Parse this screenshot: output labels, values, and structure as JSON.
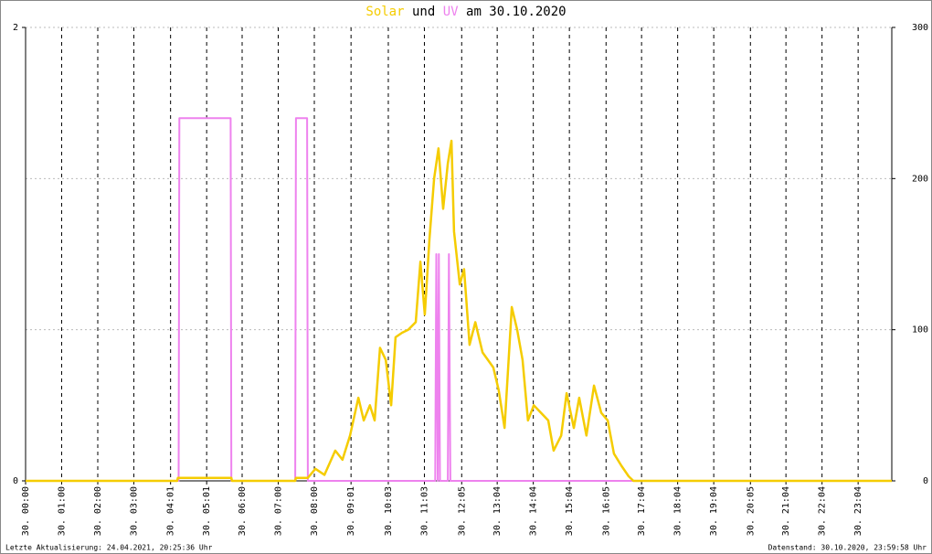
{
  "chart_data": {
    "type": "line",
    "title_parts": [
      "Solar",
      "und",
      "UV",
      "am 30.10.2020"
    ],
    "x": [],
    "series": [
      {
        "name": "Solar",
        "color": "#f5cc00",
        "axis": "y2",
        "x": [
          0,
          4.2,
          4.22,
          5.7,
          5.72,
          7.47,
          7.49,
          7.82,
          8.03,
          8.28,
          8.58,
          8.78,
          8.99,
          9.22,
          9.37,
          9.54,
          9.67,
          9.82,
          9.98,
          10.13,
          10.25,
          10.43,
          10.6,
          10.81,
          10.94,
          11.06,
          11.19,
          11.32,
          11.44,
          11.57,
          11.7,
          11.8,
          11.87,
          12.03,
          12.15,
          12.3,
          12.46,
          12.66,
          12.96,
          13.11,
          13.27,
          13.47,
          13.62,
          13.77,
          13.92,
          14.08,
          14.28,
          14.48,
          14.63,
          14.84,
          14.99,
          15.19,
          15.34,
          15.54,
          15.75,
          15.95,
          16.13,
          16.3,
          16.51,
          16.71,
          16.84,
          24
        ],
        "values": [
          0,
          0,
          2,
          2,
          0,
          0,
          2,
          2,
          8,
          4,
          20,
          14,
          30,
          55,
          40,
          50,
          40,
          88,
          80,
          50,
          95,
          98,
          100,
          105,
          145,
          110,
          160,
          200,
          220,
          180,
          210,
          225,
          165,
          130,
          140,
          90,
          105,
          85,
          75,
          60,
          35,
          115,
          100,
          80,
          40,
          50,
          45,
          40,
          20,
          30,
          58,
          35,
          55,
          30,
          63,
          45,
          40,
          18,
          10,
          3,
          0,
          0
        ]
      },
      {
        "name": "UV",
        "color": "#ee82ee",
        "axis": "y",
        "x": [
          0,
          4.24,
          4.26,
          5.68,
          5.7,
          7.47,
          7.49,
          7.8,
          7.82,
          11.35,
          11.38,
          11.42,
          11.45,
          11.48,
          11.7,
          11.73,
          11.77,
          24
        ],
        "values": [
          0,
          0,
          1.6,
          1.6,
          0,
          0,
          1.6,
          1.6,
          0,
          0,
          1.0,
          0,
          1.0,
          0,
          0,
          1.0,
          0,
          0
        ]
      }
    ],
    "xlim": [
      0,
      24
    ],
    "xticks": [
      {
        "value": 0,
        "label": "30. 00:00"
      },
      {
        "value": 1,
        "label": "30. 01:00"
      },
      {
        "value": 2,
        "label": "30. 02:00"
      },
      {
        "value": 3,
        "label": "30. 03:00"
      },
      {
        "value": 4.017,
        "label": "30. 04:01"
      },
      {
        "value": 5.017,
        "label": "30. 05:01"
      },
      {
        "value": 6,
        "label": "30. 06:00"
      },
      {
        "value": 7,
        "label": "30. 07:00"
      },
      {
        "value": 8,
        "label": "30. 08:00"
      },
      {
        "value": 9.017,
        "label": "30. 09:01"
      },
      {
        "value": 10.05,
        "label": "30. 10:03"
      },
      {
        "value": 11.05,
        "label": "30. 11:03"
      },
      {
        "value": 12.083,
        "label": "30. 12:05"
      },
      {
        "value": 13.067,
        "label": "30. 13:04"
      },
      {
        "value": 14.067,
        "label": "30. 14:04"
      },
      {
        "value": 15.067,
        "label": "30. 15:04"
      },
      {
        "value": 16.083,
        "label": "30. 16:05"
      },
      {
        "value": 17.067,
        "label": "30. 17:04"
      },
      {
        "value": 18.067,
        "label": "30. 18:04"
      },
      {
        "value": 19.067,
        "label": "30. 19:04"
      },
      {
        "value": 20.083,
        "label": "30. 20:05"
      },
      {
        "value": 21.067,
        "label": "30. 21:04"
      },
      {
        "value": 22.067,
        "label": "30. 22:04"
      },
      {
        "value": 23.067,
        "label": "30. 23:04"
      }
    ],
    "ylim": [
      0,
      2
    ],
    "yticks": [
      0,
      2
    ],
    "y2lim": [
      0,
      300
    ],
    "y2ticks": [
      0,
      100,
      200,
      300
    ],
    "grid": true,
    "footer_left": "Letzte Aktualisierung: 24.04.2021, 20:25:36 Uhr",
    "footer_right": "Datenstand: 30.10.2020, 23:59:58 Uhr"
  }
}
